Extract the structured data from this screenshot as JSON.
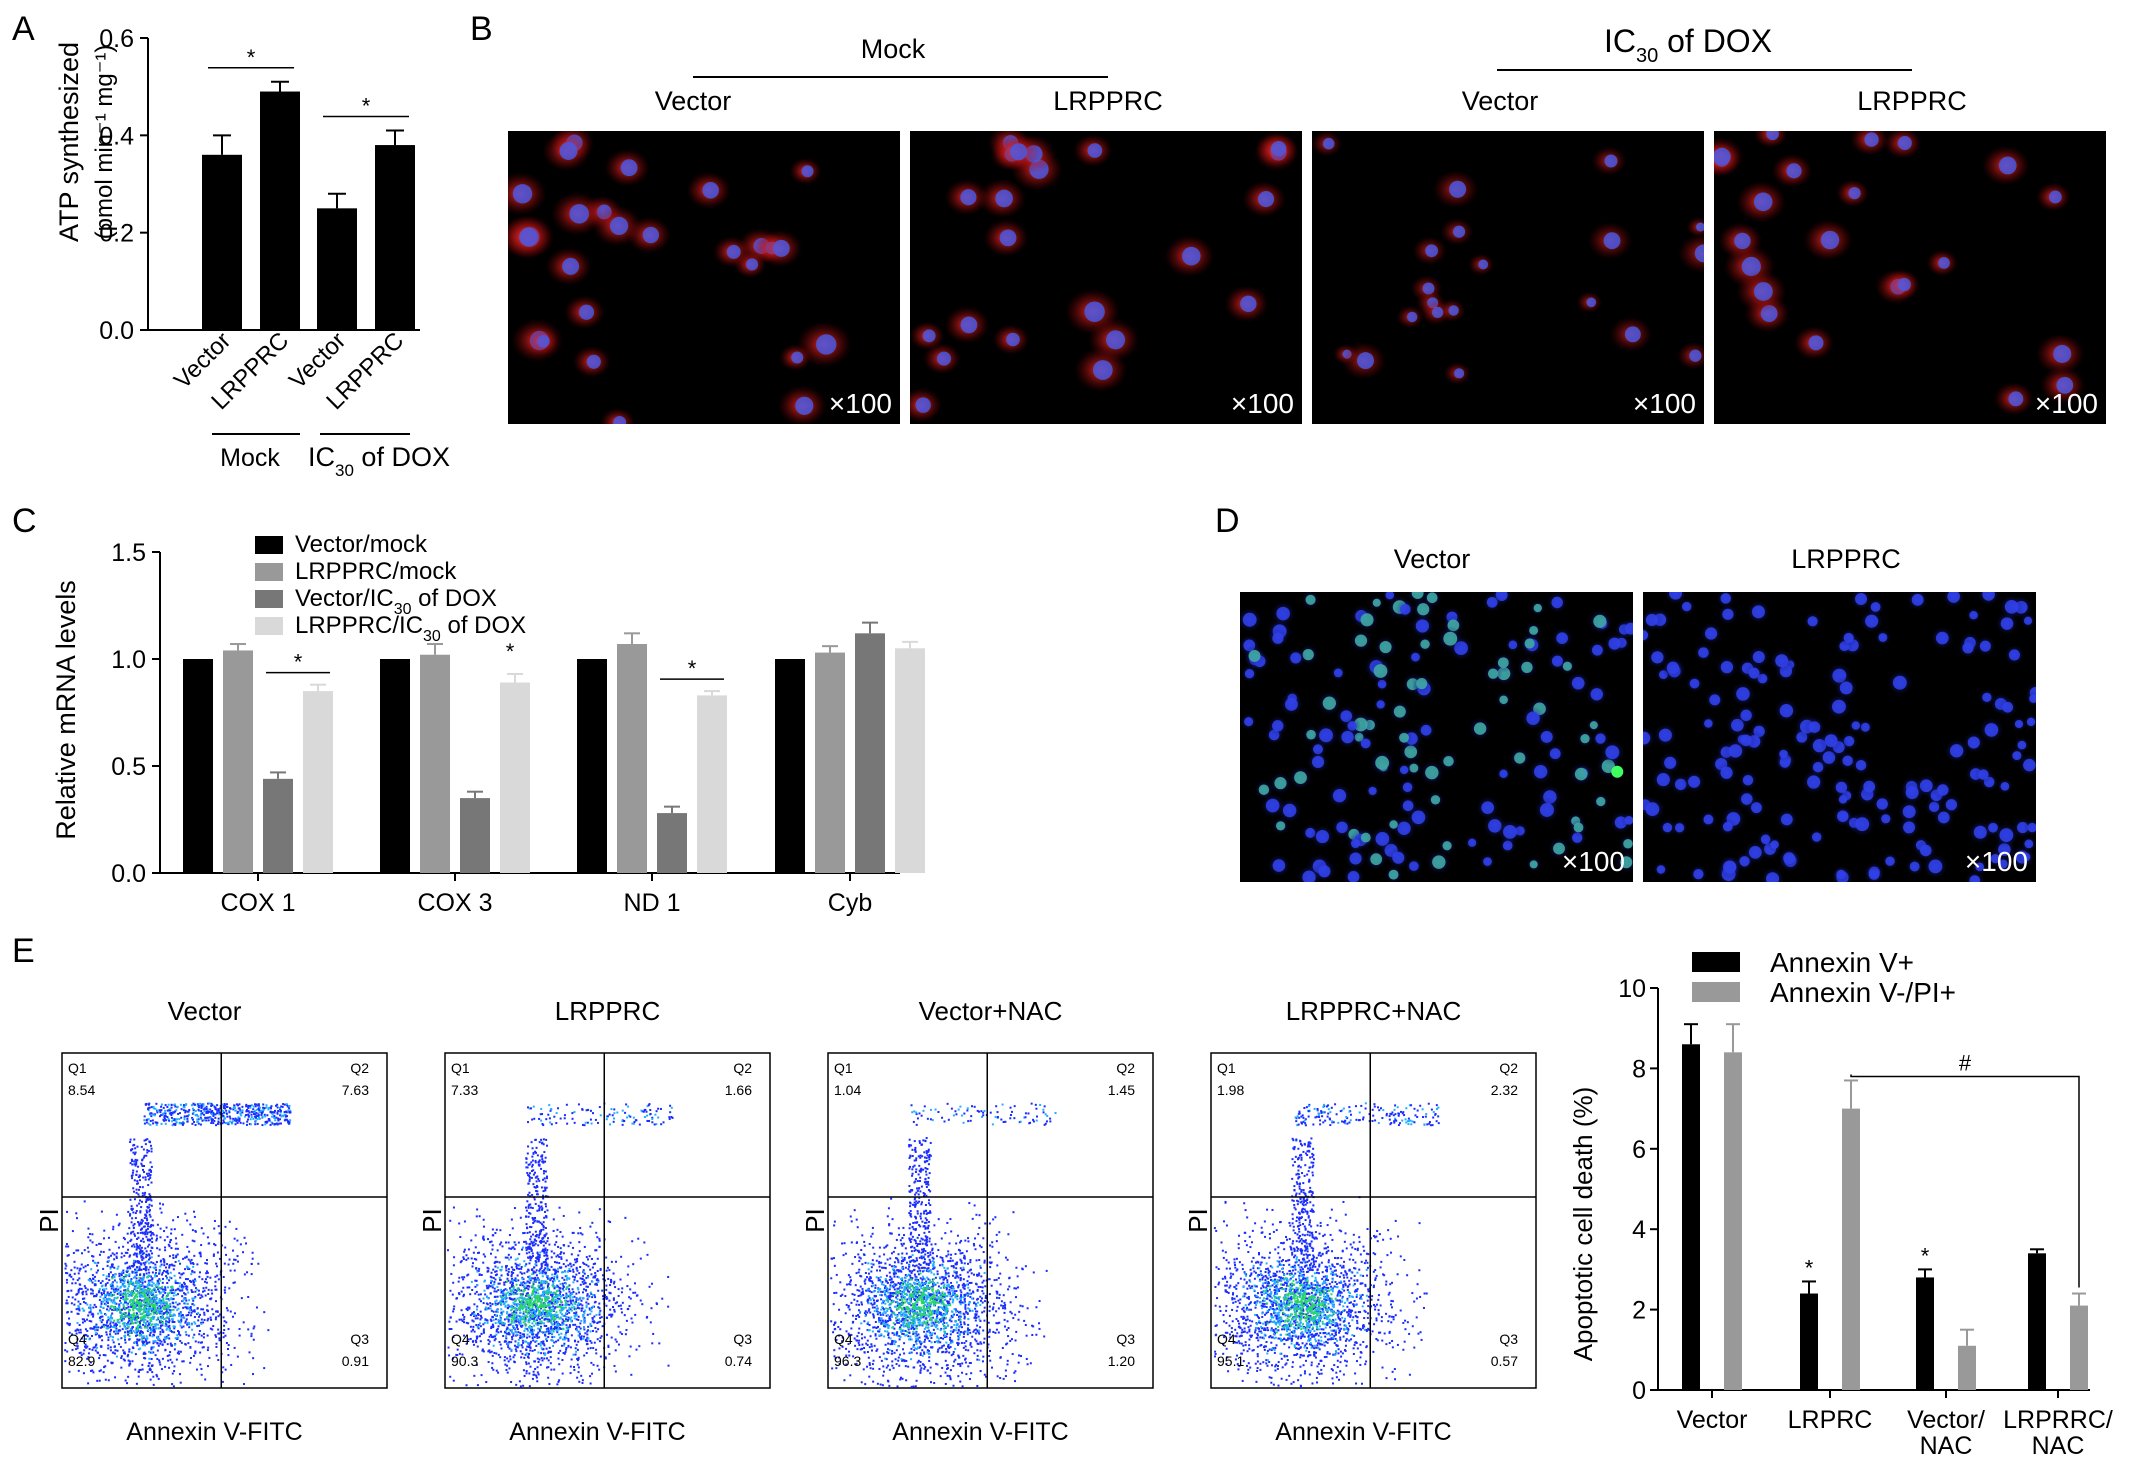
{
  "panels": {
    "A": {
      "letter": "A"
    },
    "B": {
      "letter": "B",
      "group_mock": "Mock",
      "group_dox_prefix": "IC",
      "group_dox_sub": "30",
      "group_dox_suffix": " of DOX",
      "columns": [
        "Vector",
        "LRPPRC",
        "Vector",
        "LRPPRC"
      ],
      "magnification": "×100"
    },
    "C": {
      "letter": "C"
    },
    "D": {
      "letter": "D",
      "columns": [
        "Vector",
        "LRPPRC"
      ],
      "magnification": "×100"
    },
    "E": {
      "letter": "E",
      "flow_plots": [
        {
          "title": "Vector",
          "q1": "8.54",
          "q2": "7.63",
          "q3": "0.91",
          "q4": "82.9"
        },
        {
          "title": "LRPPRC",
          "q1": "7.33",
          "q2": "1.66",
          "q3": "0.74",
          "q4": "90.3"
        },
        {
          "title": "Vector+NAC",
          "q1": "1.04",
          "q2": "1.45",
          "q3": "1.20",
          "q4": "96.3"
        },
        {
          "title": "LRPPRC+NAC",
          "q1": "1.98",
          "q2": "2.32",
          "q3": "0.57",
          "q4": "95.1"
        }
      ],
      "quadrant_labels": [
        "Q1",
        "Q2",
        "Q3",
        "Q4"
      ],
      "flow_xlabel": "Annexin V-FITC",
      "flow_ylabel": "PI"
    }
  },
  "chart_data": [
    {
      "id": "A",
      "type": "bar",
      "categories": [
        "Vector",
        "LRPPRC",
        "Vector",
        "LRPPRC"
      ],
      "values": [
        0.36,
        0.49,
        0.25,
        0.38
      ],
      "errors": [
        0.04,
        0.02,
        0.03,
        0.03
      ],
      "ylabel_line1": "ATP synthesized",
      "ylabel_line2": "(pmol min⁻¹ mg⁻¹)",
      "ylim": [
        0,
        0.6
      ],
      "yticks": [
        "0.0",
        "0.2",
        "0.4",
        "0.6"
      ],
      "groups": [
        {
          "label": "Mock"
        },
        {
          "label_prefix": "IC",
          "label_sub": "30",
          "label_suffix": " of DOX"
        }
      ],
      "significance": [
        "*",
        "*"
      ],
      "color": "#000000"
    },
    {
      "id": "C",
      "type": "bar",
      "categories": [
        "COX 1",
        "COX 3",
        "ND 1",
        "Cyb"
      ],
      "series": [
        {
          "name": "Vector/mock",
          "values": [
            1.0,
            1.0,
            1.0,
            1.0
          ],
          "errors": [
            0,
            0,
            0,
            0
          ],
          "color": "#000000"
        },
        {
          "name": "LRPPRC/mock",
          "values": [
            1.04,
            1.02,
            1.07,
            1.03
          ],
          "errors": [
            0.03,
            0.05,
            0.05,
            0.03
          ],
          "color": "#999999"
        },
        {
          "name": "Vector/IC30 of DOX",
          "name_prefix": "Vector/IC",
          "name_sub": "30",
          "name_suffix": " of DOX",
          "values": [
            0.44,
            0.35,
            0.28,
            1.12
          ],
          "errors": [
            0.03,
            0.03,
            0.03,
            0.05
          ],
          "color": "#777777"
        },
        {
          "name": "LRPPRC/IC30 of DOX",
          "name_prefix": "LRPPRC/IC",
          "name_sub": "30",
          "name_suffix": " of DOX",
          "values": [
            0.85,
            0.89,
            0.83,
            1.05
          ],
          "errors": [
            0.03,
            0.04,
            0.02,
            0.03
          ],
          "color": "#d9d9d9"
        }
      ],
      "ylabel": "Relative mRNA levels",
      "ylim": [
        0,
        1.5
      ],
      "yticks": [
        "0.0",
        "0.5",
        "1.0",
        "1.5"
      ],
      "significance": [
        "*",
        "*",
        "*"
      ],
      "legend": "top-left"
    },
    {
      "id": "E-bar",
      "type": "bar",
      "categories": [
        "Vector",
        "LRPRC",
        "Vector/\nNAC",
        "LRPRRC/\nNAC"
      ],
      "series": [
        {
          "name": "Annexin V+",
          "values": [
            8.6,
            2.4,
            2.8,
            3.4
          ],
          "errors": [
            0.5,
            0.3,
            0.2,
            0.1
          ],
          "color": "#000000"
        },
        {
          "name": "Annexin V-/PI+",
          "values": [
            8.4,
            7.0,
            1.1,
            2.1
          ],
          "errors": [
            0.7,
            0.7,
            0.4,
            0.3
          ],
          "color": "#999999"
        }
      ],
      "ylabel": "Apoptotic cell death (%)",
      "ylim": [
        0,
        10
      ],
      "yticks": [
        "0",
        "2",
        "4",
        "6",
        "8",
        "10"
      ],
      "significance_star": "*",
      "significance_hash": "#",
      "legend": "top"
    }
  ]
}
